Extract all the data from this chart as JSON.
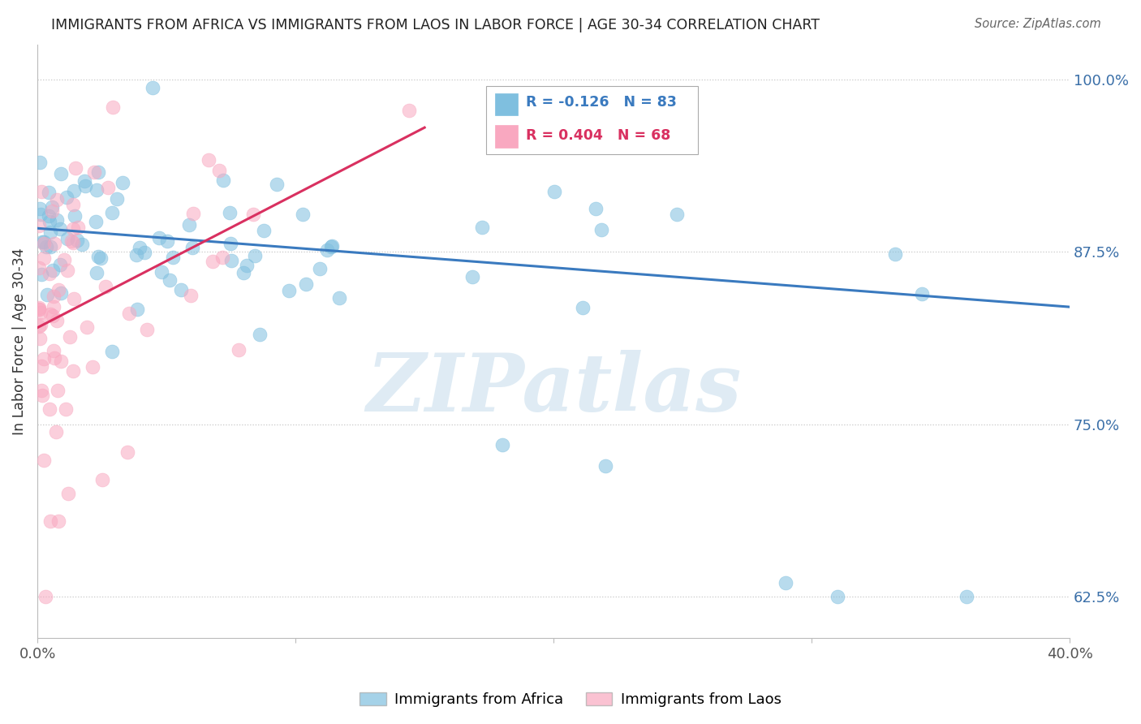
{
  "title": "IMMIGRANTS FROM AFRICA VS IMMIGRANTS FROM LAOS IN LABOR FORCE | AGE 30-34 CORRELATION CHART",
  "source": "Source: ZipAtlas.com",
  "ylabel": "In Labor Force | Age 30-34",
  "xlim": [
    0.0,
    0.4
  ],
  "ylim": [
    0.595,
    1.025
  ],
  "yticks": [
    0.625,
    0.75,
    0.875,
    1.0
  ],
  "yticklabels": [
    "62.5%",
    "75.0%",
    "87.5%",
    "100.0%"
  ],
  "xtick_positions": [
    0.0,
    0.1,
    0.2,
    0.3,
    0.4
  ],
  "xticklabels": [
    "0.0%",
    "",
    "",
    "",
    "40.0%"
  ],
  "legend_africa": "Immigrants from Africa",
  "legend_laos": "Immigrants from Laos",
  "R_africa": -0.126,
  "N_africa": 83,
  "R_laos": 0.404,
  "N_laos": 68,
  "africa_color": "#7fbfdf",
  "laos_color": "#f9a8c0",
  "africa_trend_color": "#3a7abf",
  "laos_trend_color": "#d93060",
  "watermark": "ZIPatlas",
  "background_color": "#ffffff",
  "grid_color": "#c8c8c8",
  "africa_trend_x0": 0.0,
  "africa_trend_y0": 0.892,
  "africa_trend_x1": 0.4,
  "africa_trend_y1": 0.835,
  "laos_trend_x0": 0.0,
  "laos_trend_x1": 0.15,
  "laos_trend_y0": 0.82,
  "laos_trend_y1": 0.965
}
